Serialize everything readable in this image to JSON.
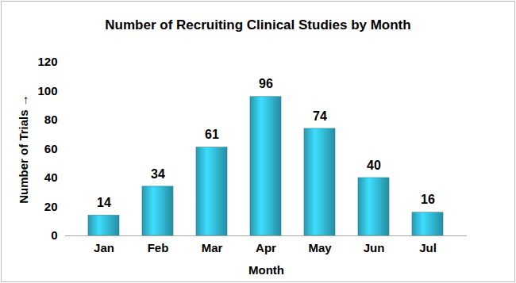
{
  "chart_data": {
    "type": "bar",
    "title": "Number of Recruiting Clinical Studies by Month",
    "x_label": "Month",
    "y_label": "Number of Trials",
    "categories": [
      "Jan",
      "Feb",
      "Mar",
      "Apr",
      "May",
      "Jun",
      "Jul"
    ],
    "values": [
      14,
      34,
      61,
      96,
      74,
      40,
      16
    ],
    "color": "#31b3cd",
    "ylim": [
      0,
      120
    ],
    "yticks": [
      0,
      20,
      40,
      60,
      80,
      100,
      120
    ],
    "grid": false,
    "data_labels": true
  }
}
